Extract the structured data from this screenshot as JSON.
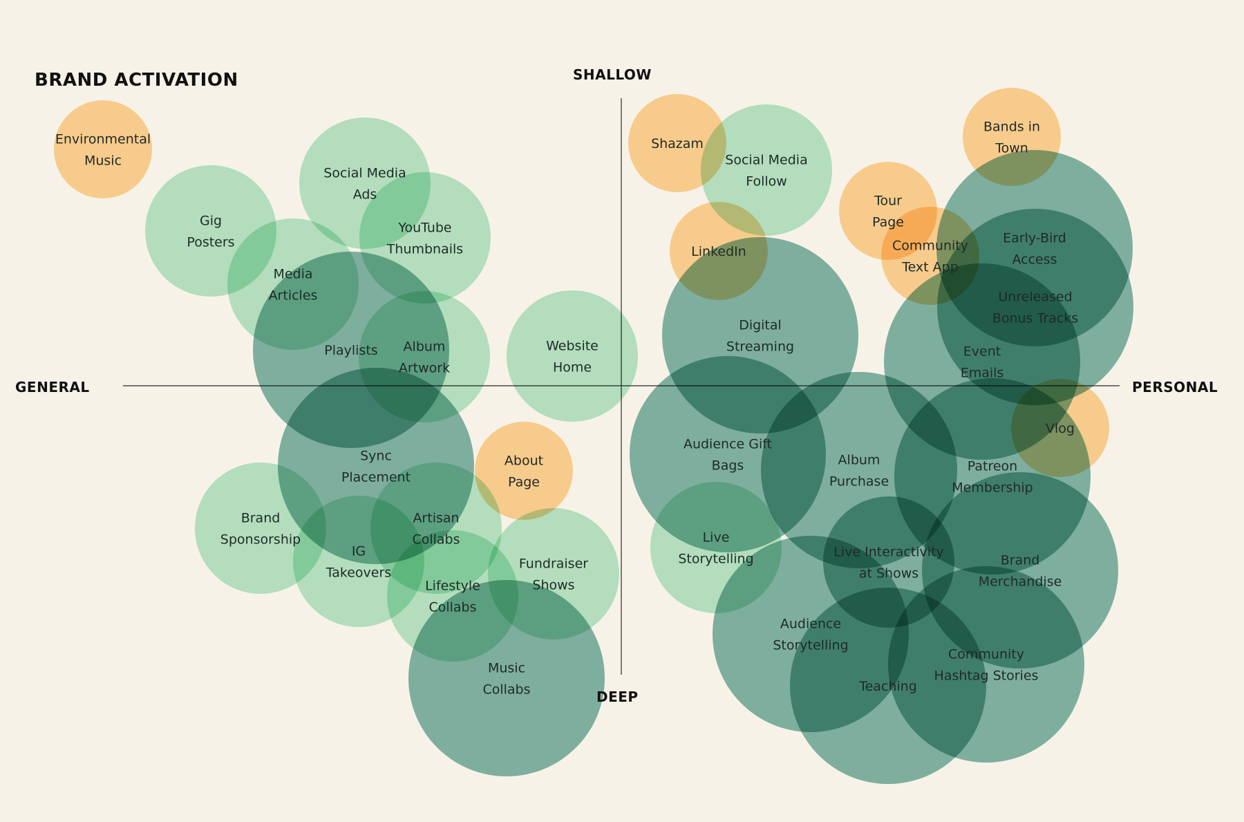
{
  "title": "BRAND ACTIVATION",
  "axes": {
    "top": "SHALLOW",
    "bottom": "DEEP",
    "left": "GENERAL",
    "right": "PERSONAL"
  },
  "colors": {
    "background": "#f7f2e7",
    "orange": "#ffcf8a",
    "mint": "#a7e3c4",
    "teal": "#3f9282",
    "axis": "#2a2a2a"
  },
  "items": [
    {
      "label": "Environmental Music",
      "lines": [
        "Environmental",
        "Music"
      ],
      "color": "orange",
      "size": "small"
    },
    {
      "label": "Gig Posters",
      "lines": [
        "Gig",
        "Posters"
      ],
      "color": "mint",
      "size": "medium"
    },
    {
      "label": "Social Media Ads",
      "lines": [
        "Social Media",
        "Ads"
      ],
      "color": "mint",
      "size": "medium"
    },
    {
      "label": "YouTube Thumbnails",
      "lines": [
        "YouTube",
        "Thumbnails"
      ],
      "color": "mint",
      "size": "medium"
    },
    {
      "label": "Media Articles",
      "lines": [
        "Media",
        "Articles"
      ],
      "color": "mint",
      "size": "medium"
    },
    {
      "label": "Playlists",
      "lines": [
        "Playlists"
      ],
      "color": "teal",
      "size": "large"
    },
    {
      "label": "Album Artwork",
      "lines": [
        "Album",
        "Artwork"
      ],
      "color": "mint",
      "size": "medium"
    },
    {
      "label": "Website Home",
      "lines": [
        "Website",
        "Home"
      ],
      "color": "mint",
      "size": "medium"
    },
    {
      "label": "Sync Placement",
      "lines": [
        "Sync",
        "Placement"
      ],
      "color": "teal",
      "size": "large"
    },
    {
      "label": "About Page",
      "lines": [
        "About",
        "Page"
      ],
      "color": "orange",
      "size": "small"
    },
    {
      "label": "Brand Sponsorship",
      "lines": [
        "Brand",
        "Sponsorship"
      ],
      "color": "mint",
      "size": "medium"
    },
    {
      "label": "IG Takeovers",
      "lines": [
        "IG",
        "Takeovers"
      ],
      "color": "mint",
      "size": "medium"
    },
    {
      "label": "Artisan Collabs",
      "lines": [
        "Artisan",
        "Collabs"
      ],
      "color": "mint",
      "size": "medium"
    },
    {
      "label": "Fundraiser Shows",
      "lines": [
        "Fundraiser",
        "Shows"
      ],
      "color": "mint",
      "size": "medium"
    },
    {
      "label": "Lifestyle Collabs",
      "lines": [
        "Lifestyle",
        "Collabs"
      ],
      "color": "mint",
      "size": "medium"
    },
    {
      "label": "Music Collabs",
      "lines": [
        "Music",
        "Collabs"
      ],
      "color": "teal",
      "size": "large"
    },
    {
      "label": "Shazam",
      "lines": [
        "Shazam"
      ],
      "color": "orange",
      "size": "small"
    },
    {
      "label": "Social Media Follow",
      "lines": [
        "Social Media",
        "Follow"
      ],
      "color": "mint",
      "size": "medium"
    },
    {
      "label": "LinkedIn",
      "lines": [
        "LinkedIn"
      ],
      "color": "orange",
      "size": "small"
    },
    {
      "label": "Digital Streaming",
      "lines": [
        "Digital",
        "Streaming"
      ],
      "color": "teal",
      "size": "large"
    },
    {
      "label": "Tour Page",
      "lines": [
        "Tour",
        "Page"
      ],
      "color": "orange",
      "size": "small"
    },
    {
      "label": "Community Text App",
      "lines": [
        "Community",
        "Text App"
      ],
      "color": "orange",
      "size": "small"
    },
    {
      "label": "Bands in Town",
      "lines": [
        "Bands in",
        "Town"
      ],
      "color": "orange",
      "size": "small"
    },
    {
      "label": "Early-Bird Access",
      "lines": [
        "Early-Bird",
        "Access"
      ],
      "color": "teal",
      "size": "large"
    },
    {
      "label": "Unreleased Bonus Tracks",
      "lines": [
        "Unreleased",
        "Bonus Tracks"
      ],
      "color": "teal",
      "size": "large"
    },
    {
      "label": "Event Emails",
      "lines": [
        "Event",
        "Emails"
      ],
      "color": "teal",
      "size": "large"
    },
    {
      "label": "Vlog",
      "lines": [
        "Vlog"
      ],
      "color": "orange",
      "size": "small"
    },
    {
      "label": "Audience Gift Bags",
      "lines": [
        "Audience Gift",
        "Bags"
      ],
      "color": "teal",
      "size": "large"
    },
    {
      "label": "Album Purchase",
      "lines": [
        "Album",
        "Purchase"
      ],
      "color": "teal",
      "size": "large"
    },
    {
      "label": "Patreon Membership",
      "lines": [
        "Patreon",
        "Membership"
      ],
      "color": "teal",
      "size": "large"
    },
    {
      "label": "Live Storytelling",
      "lines": [
        "Live",
        "Storytelling"
      ],
      "color": "mint",
      "size": "medium"
    },
    {
      "label": "Live Interactivity at Shows",
      "lines": [
        "Live Interactivity",
        "at Shows"
      ],
      "color": "teal",
      "size": "medium"
    },
    {
      "label": "Brand Merchandise",
      "lines": [
        "Brand",
        "Merchandise"
      ],
      "color": "teal",
      "size": "large"
    },
    {
      "label": "Audience Storytelling",
      "lines": [
        "Audience",
        "Storytelling"
      ],
      "color": "teal",
      "size": "large"
    },
    {
      "label": "Community Hashtag Stories",
      "lines": [
        "Community",
        "Hashtag Stories"
      ],
      "color": "teal",
      "size": "large"
    },
    {
      "label": "Teaching",
      "lines": [
        "Teaching"
      ],
      "color": "teal",
      "size": "large"
    }
  ]
}
